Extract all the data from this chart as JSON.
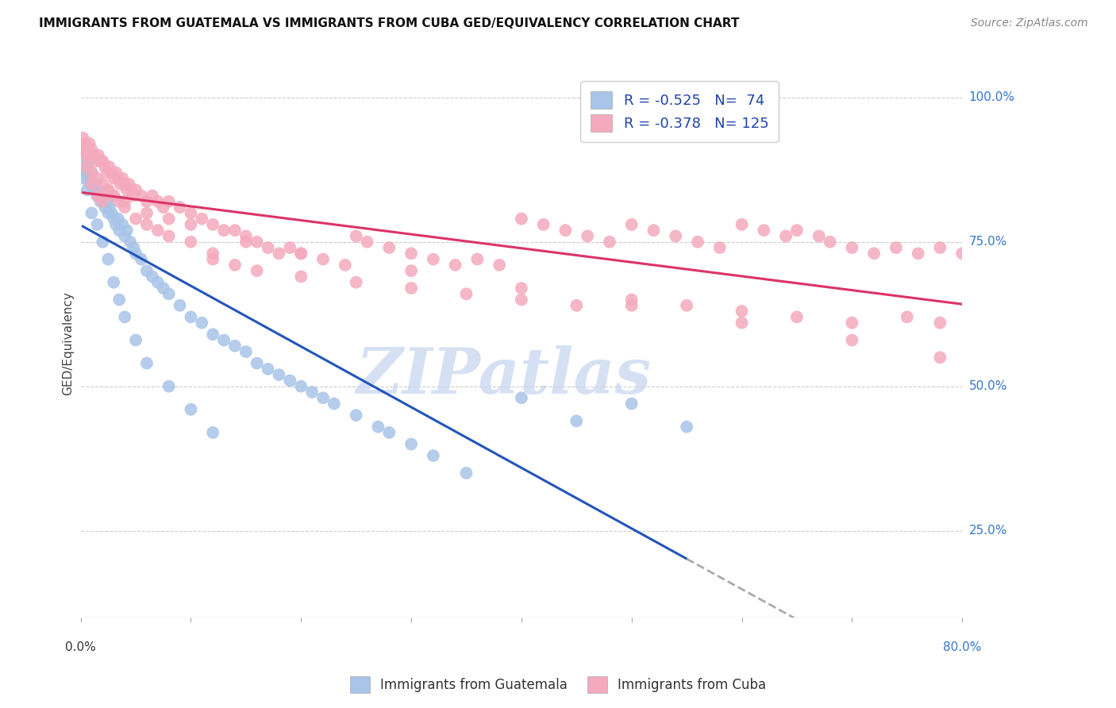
{
  "title": "IMMIGRANTS FROM GUATEMALA VS IMMIGRANTS FROM CUBA GED/EQUIVALENCY CORRELATION CHART",
  "source": "Source: ZipAtlas.com",
  "ylabel": "GED/Equivalency",
  "ytick_labels": [
    "100.0%",
    "75.0%",
    "50.0%",
    "25.0%"
  ],
  "ytick_values": [
    1.0,
    0.75,
    0.5,
    0.25
  ],
  "legend_labels": [
    "Immigrants from Guatemala",
    "Immigrants from Cuba"
  ],
  "legend_r": [
    -0.525,
    -0.378
  ],
  "legend_n": [
    74,
    125
  ],
  "blue_scatter_color": "#a8c4e8",
  "pink_scatter_color": "#f4aabc",
  "blue_line_color": "#2255bb",
  "pink_line_color": "#dd3366",
  "watermark_color": "#c8d8f0",
  "background_color": "#ffffff",
  "grid_color": "#cccccc",
  "xlim": [
    0.0,
    0.8
  ],
  "ylim": [
    0.1,
    1.05
  ],
  "blue_x": [
    0.002,
    0.004,
    0.005,
    0.006,
    0.007,
    0.008,
    0.009,
    0.01,
    0.012,
    0.014,
    0.015,
    0.016,
    0.018,
    0.02,
    0.022,
    0.024,
    0.025,
    0.026,
    0.028,
    0.03,
    0.032,
    0.034,
    0.035,
    0.038,
    0.04,
    0.042,
    0.045,
    0.048,
    0.05,
    0.055,
    0.06,
    0.065,
    0.07,
    0.075,
    0.08,
    0.09,
    0.1,
    0.11,
    0.12,
    0.13,
    0.14,
    0.15,
    0.16,
    0.17,
    0.18,
    0.19,
    0.2,
    0.21,
    0.22,
    0.23,
    0.25,
    0.27,
    0.28,
    0.3,
    0.32,
    0.35,
    0.4,
    0.45,
    0.5,
    0.55,
    0.003,
    0.006,
    0.01,
    0.015,
    0.02,
    0.025,
    0.03,
    0.035,
    0.04,
    0.05,
    0.06,
    0.08,
    0.1,
    0.12
  ],
  "blue_y": [
    0.9,
    0.88,
    0.91,
    0.87,
    0.89,
    0.86,
    0.85,
    0.87,
    0.84,
    0.85,
    0.83,
    0.84,
    0.82,
    0.83,
    0.81,
    0.82,
    0.8,
    0.81,
    0.8,
    0.79,
    0.78,
    0.79,
    0.77,
    0.78,
    0.76,
    0.77,
    0.75,
    0.74,
    0.73,
    0.72,
    0.7,
    0.69,
    0.68,
    0.67,
    0.66,
    0.64,
    0.62,
    0.61,
    0.59,
    0.58,
    0.57,
    0.56,
    0.54,
    0.53,
    0.52,
    0.51,
    0.5,
    0.49,
    0.48,
    0.47,
    0.45,
    0.43,
    0.42,
    0.4,
    0.38,
    0.35,
    0.48,
    0.44,
    0.47,
    0.43,
    0.86,
    0.84,
    0.8,
    0.78,
    0.75,
    0.72,
    0.68,
    0.65,
    0.62,
    0.58,
    0.54,
    0.5,
    0.46,
    0.42
  ],
  "pink_x": [
    0.002,
    0.004,
    0.005,
    0.006,
    0.008,
    0.01,
    0.012,
    0.014,
    0.016,
    0.018,
    0.02,
    0.022,
    0.024,
    0.026,
    0.028,
    0.03,
    0.032,
    0.034,
    0.036,
    0.038,
    0.04,
    0.042,
    0.044,
    0.046,
    0.048,
    0.05,
    0.055,
    0.06,
    0.065,
    0.07,
    0.075,
    0.08,
    0.09,
    0.1,
    0.11,
    0.12,
    0.13,
    0.14,
    0.15,
    0.16,
    0.17,
    0.18,
    0.19,
    0.2,
    0.22,
    0.24,
    0.25,
    0.26,
    0.28,
    0.3,
    0.32,
    0.34,
    0.36,
    0.38,
    0.4,
    0.42,
    0.44,
    0.46,
    0.48,
    0.5,
    0.52,
    0.54,
    0.56,
    0.58,
    0.6,
    0.62,
    0.64,
    0.65,
    0.67,
    0.68,
    0.7,
    0.72,
    0.74,
    0.76,
    0.78,
    0.8,
    0.005,
    0.01,
    0.015,
    0.02,
    0.025,
    0.03,
    0.035,
    0.04,
    0.05,
    0.06,
    0.07,
    0.08,
    0.1,
    0.12,
    0.14,
    0.16,
    0.2,
    0.25,
    0.3,
    0.35,
    0.4,
    0.45,
    0.5,
    0.55,
    0.6,
    0.65,
    0.7,
    0.75,
    0.78,
    0.003,
    0.006,
    0.01,
    0.015,
    0.02,
    0.025,
    0.03,
    0.04,
    0.06,
    0.08,
    0.1,
    0.15,
    0.2,
    0.3,
    0.4,
    0.5,
    0.6,
    0.7,
    0.78,
    0.12
  ],
  "pink_y": [
    0.93,
    0.92,
    0.91,
    0.9,
    0.92,
    0.91,
    0.9,
    0.89,
    0.9,
    0.89,
    0.89,
    0.88,
    0.87,
    0.88,
    0.87,
    0.86,
    0.87,
    0.86,
    0.85,
    0.86,
    0.85,
    0.84,
    0.85,
    0.84,
    0.83,
    0.84,
    0.83,
    0.82,
    0.83,
    0.82,
    0.81,
    0.82,
    0.81,
    0.8,
    0.79,
    0.78,
    0.77,
    0.77,
    0.76,
    0.75,
    0.74,
    0.73,
    0.74,
    0.73,
    0.72,
    0.71,
    0.76,
    0.75,
    0.74,
    0.73,
    0.72,
    0.71,
    0.72,
    0.71,
    0.79,
    0.78,
    0.77,
    0.76,
    0.75,
    0.78,
    0.77,
    0.76,
    0.75,
    0.74,
    0.78,
    0.77,
    0.76,
    0.77,
    0.76,
    0.75,
    0.74,
    0.73,
    0.74,
    0.73,
    0.74,
    0.73,
    0.88,
    0.85,
    0.83,
    0.82,
    0.84,
    0.83,
    0.82,
    0.81,
    0.79,
    0.78,
    0.77,
    0.76,
    0.75,
    0.73,
    0.71,
    0.7,
    0.69,
    0.68,
    0.67,
    0.66,
    0.65,
    0.64,
    0.65,
    0.64,
    0.63,
    0.62,
    0.61,
    0.62,
    0.61,
    0.91,
    0.9,
    0.87,
    0.86,
    0.85,
    0.84,
    0.83,
    0.82,
    0.8,
    0.79,
    0.78,
    0.75,
    0.73,
    0.7,
    0.67,
    0.64,
    0.61,
    0.58,
    0.55,
    0.72
  ]
}
